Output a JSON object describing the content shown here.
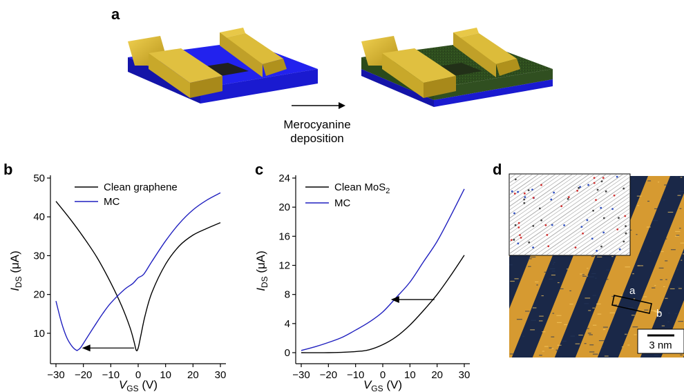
{
  "panels": {
    "a": "a",
    "b": "b",
    "c": "c",
    "d": "d"
  },
  "schematic": {
    "arrow_text_line1": "Merocyanine",
    "arrow_text_line2": "deposition"
  },
  "stm": {
    "scale_bar": "3 nm",
    "marker_a": "a",
    "marker_b": "b"
  },
  "colors": {
    "clean": "#000000",
    "mc": "#1f1fbf",
    "substrate": "#1a1ae6",
    "gold": "#d8b830",
    "film": "#2e4d1e"
  },
  "chart_data": [
    {
      "type": "line",
      "panel": "b",
      "ylabel_main": "I",
      "ylabel_sub": "DS",
      "ylabel_unit": " (μA)",
      "xlabel_main": "V",
      "xlabel_sub": "GS",
      "xlabel_unit": " (V)",
      "xlim": [
        -30,
        30
      ],
      "ylim": [
        5,
        50
      ],
      "xticks": [
        -30,
        -20,
        -10,
        0,
        10,
        20,
        30
      ],
      "yticks": [
        10,
        20,
        30,
        40,
        50
      ],
      "legend": "top-left",
      "series": [
        {
          "name": "Clean graphene",
          "color": "#000000",
          "x": [
            -30,
            -25,
            -20,
            -15,
            -10,
            -6,
            -3,
            -1.5,
            -0.7,
            0,
            1,
            2.5,
            5,
            10,
            15,
            20,
            25,
            30
          ],
          "y": [
            44,
            39.6,
            34.8,
            29.5,
            23.0,
            17.0,
            11.5,
            7.8,
            5.6,
            6.2,
            9.5,
            14.5,
            20.5,
            27.8,
            32.5,
            35.3,
            37.0,
            38.5
          ]
        },
        {
          "name": "MC",
          "color": "#1f1fbf",
          "x": [
            -30,
            -28,
            -26,
            -24,
            -22.5,
            -22,
            -21,
            -19,
            -16,
            -13,
            -10,
            -5,
            -2,
            0,
            2,
            5,
            10,
            15,
            20,
            25,
            30
          ],
          "y": [
            18.3,
            12.8,
            8.8,
            6.5,
            5.6,
            5.7,
            6.3,
            8.5,
            11.8,
            15.0,
            17.8,
            21.3,
            22.8,
            24.3,
            25.2,
            28.5,
            33.8,
            38.3,
            41.8,
            44.3,
            46.2
          ]
        }
      ],
      "annotation_arrow": {
        "from": [
          -1.5,
          6.2
        ],
        "to": [
          -20.5,
          6.2
        ]
      }
    },
    {
      "type": "line",
      "panel": "c",
      "ylabel_main": "I",
      "ylabel_sub": "DS",
      "ylabel_unit": " (μA)",
      "xlabel_main": "V",
      "xlabel_sub": "GS",
      "xlabel_unit": " (V)",
      "xlim": [
        -30,
        30
      ],
      "ylim": [
        0,
        24
      ],
      "xticks": [
        -30,
        -20,
        -10,
        0,
        10,
        20,
        30
      ],
      "yticks": [
        0,
        4,
        8,
        12,
        16,
        20,
        24
      ],
      "legend": "top-left",
      "series": [
        {
          "name": "Clean MoS2",
          "color": "#000000",
          "x": [
            -30,
            -20,
            -10,
            -5,
            0,
            5,
            10,
            15,
            20,
            25,
            30
          ],
          "y": [
            0,
            0,
            0.15,
            0.4,
            1.1,
            2.2,
            3.8,
            5.8,
            8.0,
            10.6,
            13.4
          ]
        },
        {
          "name": "MC",
          "color": "#1f1fbf",
          "x": [
            -30,
            -25,
            -20,
            -15,
            -10,
            -5,
            0,
            5,
            10,
            15,
            20,
            25,
            30
          ],
          "y": [
            0.3,
            0.8,
            1.4,
            2.1,
            3.1,
            4.2,
            5.6,
            7.6,
            9.7,
            12.5,
            15.3,
            18.8,
            22.5
          ]
        }
      ],
      "annotation_arrow": {
        "from": [
          19,
          7.3
        ],
        "to": [
          3,
          7.3
        ]
      }
    }
  ]
}
